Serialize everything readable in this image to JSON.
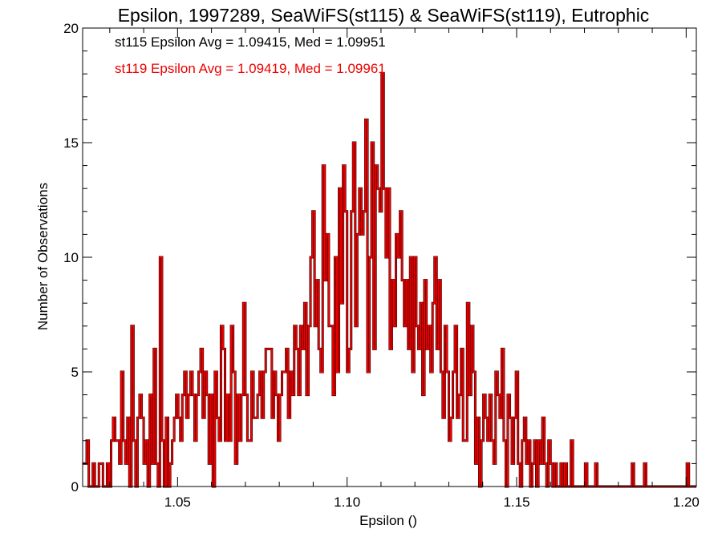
{
  "chart_data": {
    "type": "histogram",
    "title": "Epsilon, 1997289, SeaWiFS(st115) & SeaWiFS(st119), Eutrophic",
    "xlabel": "Epsilon ()",
    "ylabel": "Number of Observations",
    "xlim": [
      1.022,
      1.203
    ],
    "ylim": [
      0,
      20
    ],
    "bin_width": 0.0006,
    "x_ticks": [
      1.05,
      1.1,
      1.15,
      1.2
    ],
    "x_tick_labels": [
      "1.05",
      "1.10",
      "1.15",
      "1.20"
    ],
    "y_ticks": [
      0,
      5,
      10,
      15,
      20
    ],
    "y_tick_labels": [
      "0",
      "5",
      "10",
      "15",
      "20"
    ],
    "legend": [
      {
        "text": "st115 Epsilon Avg = 1.09415, Med = 1.09951",
        "color": "#000000"
      },
      {
        "text": "st119 Epsilon Avg = 1.09419, Med = 1.09961",
        "color": "#ee0000"
      }
    ],
    "series": [
      {
        "name": "st115",
        "color": "#000000",
        "x_start": 1.022,
        "counts": [
          1,
          1,
          2,
          0,
          0,
          1,
          0,
          0,
          1,
          1,
          0,
          0,
          1,
          0,
          2,
          3,
          2,
          2,
          1,
          5,
          2,
          1,
          3,
          0,
          7,
          2,
          0,
          3,
          4,
          3,
          1,
          2,
          0,
          4,
          1,
          6,
          1,
          0,
          10,
          2,
          0,
          3,
          0,
          1,
          2,
          3,
          4,
          3,
          2,
          4,
          5,
          3,
          4,
          5,
          4,
          2,
          4,
          5,
          6,
          3,
          5,
          4,
          1,
          4,
          0,
          5,
          3,
          2,
          7,
          6,
          2,
          4,
          2,
          7,
          5,
          1,
          4,
          2,
          4,
          8,
          4,
          2,
          2,
          5,
          3,
          3,
          4,
          5,
          3,
          5,
          6,
          6,
          6,
          3,
          5,
          4,
          2,
          4,
          5,
          5,
          6,
          3,
          5,
          4,
          7,
          6,
          4,
          7,
          6,
          8,
          4,
          7,
          10,
          12,
          7,
          9,
          6,
          5,
          14,
          9,
          11,
          7,
          7,
          4,
          10,
          5,
          13,
          8,
          14,
          12,
          5,
          6,
          12,
          15,
          7,
          11,
          13,
          11,
          12,
          16,
          5,
          10,
          15,
          6,
          14,
          13,
          12,
          18,
          13,
          10,
          13,
          6,
          9,
          7,
          11,
          10,
          12,
          9,
          7,
          9,
          6,
          10,
          5,
          10,
          7,
          6,
          8,
          4,
          9,
          6,
          7,
          5,
          8,
          10,
          6,
          9,
          5,
          3,
          7,
          5,
          2,
          3,
          5,
          7,
          3,
          4,
          6,
          2,
          2,
          8,
          4,
          7,
          5,
          1,
          3,
          0,
          2,
          4,
          3,
          2,
          4,
          2,
          1,
          5,
          4,
          3,
          6,
          2,
          0,
          4,
          3,
          1,
          3,
          5,
          1,
          0,
          2,
          3,
          1,
          2,
          0,
          1,
          2,
          0,
          2,
          1,
          3,
          1,
          0,
          2,
          1,
          0,
          1,
          0,
          0,
          1,
          0,
          1,
          0,
          0,
          2,
          0,
          0,
          0,
          0,
          0,
          0,
          1,
          0,
          0,
          0,
          0,
          1,
          0,
          0,
          0,
          0,
          0,
          0,
          0,
          0,
          0,
          0,
          0,
          0,
          0,
          0,
          0,
          0,
          0,
          1,
          0,
          0,
          0,
          0,
          0,
          1,
          0,
          0,
          0,
          0,
          0,
          0,
          0,
          0,
          0,
          0,
          0,
          0,
          0,
          0,
          0,
          0,
          0,
          0,
          0,
          0,
          1,
          0,
          0,
          0,
          0,
          0,
          0,
          0
        ]
      },
      {
        "name": "st119",
        "color": "#ee0000",
        "x_start": 1.022,
        "counts": [
          1,
          1,
          2,
          0,
          0,
          1,
          0,
          0,
          1,
          1,
          0,
          0,
          1,
          0,
          2,
          3,
          2,
          2,
          1,
          5,
          2,
          1,
          3,
          0,
          7,
          2,
          0,
          3,
          4,
          3,
          1,
          2,
          0,
          4,
          1,
          6,
          1,
          0,
          10,
          2,
          0,
          3,
          0,
          1,
          2,
          3,
          4,
          3,
          2,
          4,
          5,
          3,
          4,
          5,
          4,
          2,
          4,
          5,
          6,
          3,
          5,
          4,
          1,
          4,
          0,
          5,
          3,
          2,
          7,
          6,
          2,
          4,
          2,
          7,
          5,
          1,
          4,
          2,
          4,
          8,
          4,
          2,
          2,
          5,
          3,
          3,
          4,
          5,
          3,
          5,
          6,
          6,
          6,
          3,
          5,
          4,
          2,
          4,
          5,
          5,
          6,
          3,
          5,
          4,
          7,
          6,
          4,
          7,
          6,
          8,
          4,
          7,
          10,
          12,
          7,
          9,
          6,
          5,
          14,
          9,
          11,
          7,
          7,
          4,
          10,
          5,
          13,
          8,
          14,
          12,
          5,
          6,
          12,
          15,
          7,
          11,
          13,
          11,
          12,
          16,
          5,
          10,
          15,
          6,
          14,
          13,
          12,
          18,
          13,
          10,
          13,
          6,
          9,
          7,
          11,
          10,
          12,
          9,
          7,
          9,
          6,
          10,
          5,
          10,
          7,
          6,
          8,
          4,
          9,
          6,
          7,
          5,
          8,
          10,
          6,
          9,
          5,
          3,
          7,
          5,
          2,
          3,
          5,
          7,
          3,
          4,
          6,
          2,
          2,
          8,
          4,
          7,
          5,
          1,
          3,
          0,
          2,
          4,
          3,
          2,
          4,
          2,
          1,
          5,
          4,
          3,
          6,
          2,
          0,
          4,
          3,
          1,
          3,
          5,
          1,
          0,
          2,
          3,
          1,
          2,
          0,
          1,
          2,
          0,
          2,
          1,
          3,
          1,
          0,
          2,
          1,
          0,
          1,
          0,
          0,
          1,
          0,
          1,
          0,
          0,
          2,
          0,
          0,
          0,
          0,
          0,
          0,
          1,
          0,
          0,
          0,
          0,
          1,
          0,
          0,
          0,
          0,
          0,
          0,
          0,
          0,
          0,
          0,
          0,
          0,
          0,
          0,
          0,
          0,
          0,
          1,
          0,
          0,
          0,
          0,
          0,
          1,
          0,
          0,
          0,
          0,
          0,
          0,
          0,
          0,
          0,
          0,
          0,
          0,
          0,
          0,
          0,
          0,
          0,
          0,
          0,
          0,
          1,
          0,
          0,
          0,
          0,
          0,
          0,
          0
        ]
      }
    ]
  }
}
